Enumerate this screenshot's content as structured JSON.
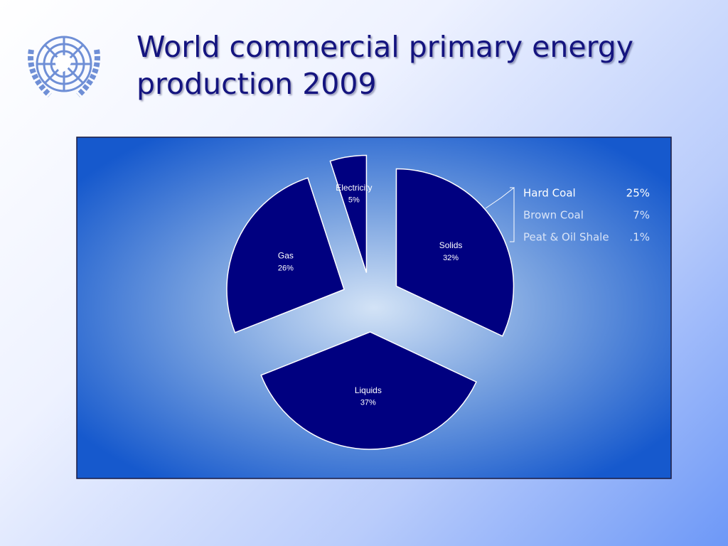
{
  "chart_data": {
    "type": "pie",
    "title": "World commercial primary energy production 2009",
    "categories": [
      "Solids",
      "Liquids",
      "Gas",
      "Electricity"
    ],
    "values": [
      32,
      37,
      26,
      5
    ],
    "value_labels": [
      "32%",
      "37%",
      "26%",
      "5%"
    ],
    "color": "#000080",
    "breakdown": {
      "categories": [
        "Hard Coal",
        "Brown Coal",
        "Peat & Oil Shale"
      ],
      "values": [
        25,
        7,
        0.1
      ],
      "value_labels": [
        "25%",
        "7%",
        ".1%"
      ]
    }
  }
}
